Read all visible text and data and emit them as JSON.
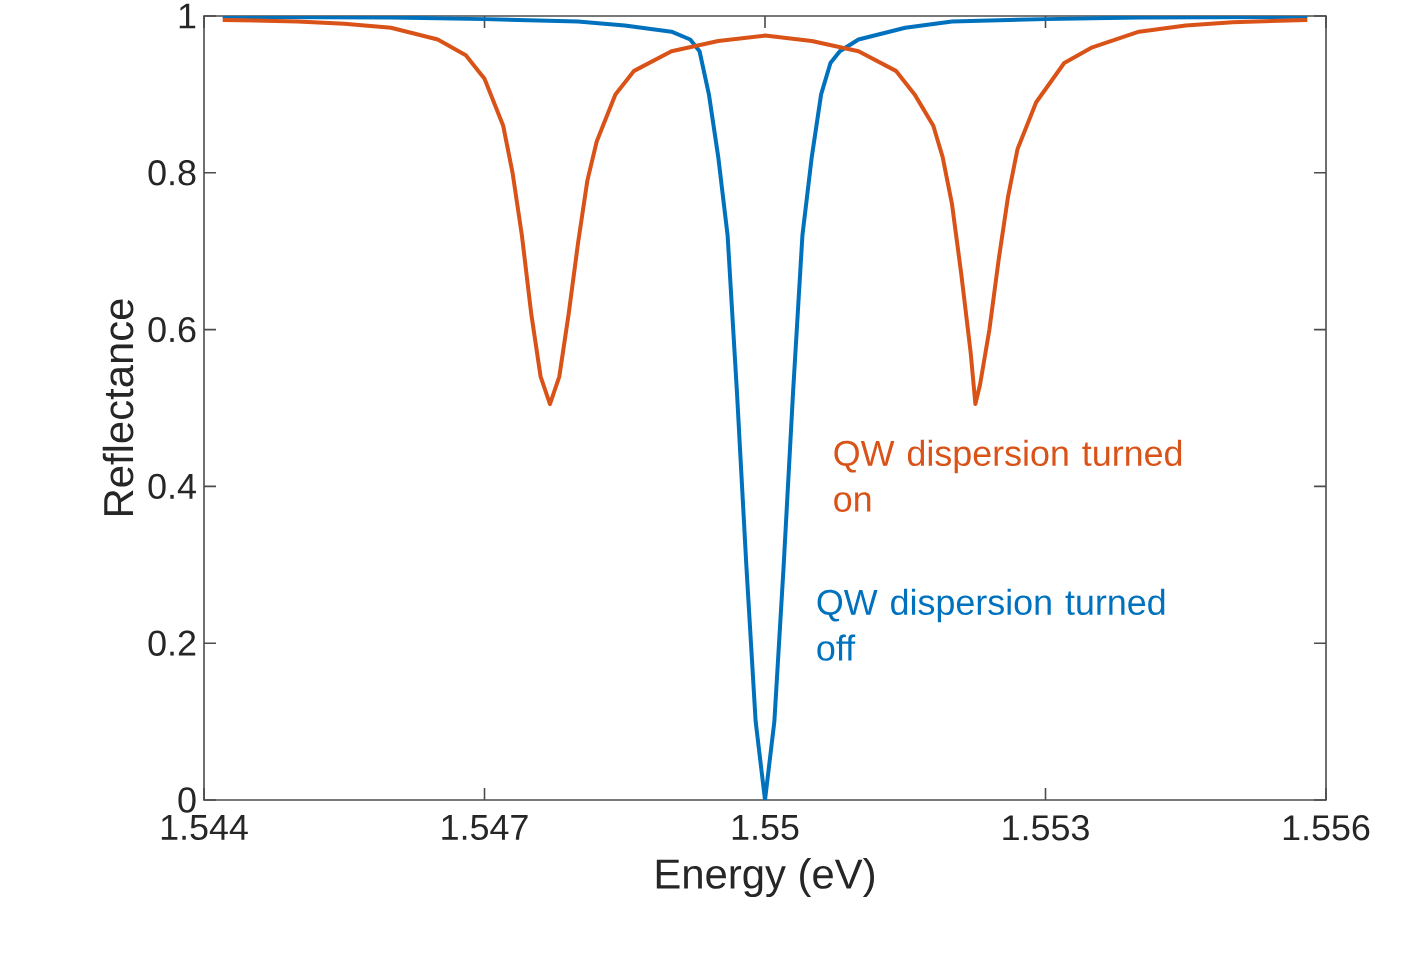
{
  "chart_data": {
    "type": "line",
    "xlabel": "Energy (eV)",
    "ylabel": "Reflectance",
    "xlim": [
      1.544,
      1.556
    ],
    "ylim": [
      0,
      1
    ],
    "xticks": [
      1.544,
      1.547,
      1.55,
      1.553,
      1.556
    ],
    "yticks": [
      0,
      0.2,
      0.4,
      0.6,
      0.8,
      1
    ],
    "grid": false,
    "legend": false,
    "marker": "none",
    "line_style": "solid",
    "series": [
      {
        "name": "QW dispersion turned off",
        "color": "#0072bd",
        "x": [
          1.5442,
          1.546,
          1.547,
          1.548,
          1.5485,
          1.549,
          1.5492,
          1.5493,
          1.5494,
          1.5495,
          1.5496,
          1.5497,
          1.5498,
          1.5499,
          1.55,
          1.5501,
          1.5502,
          1.5503,
          1.5504,
          1.5505,
          1.5506,
          1.5507,
          1.5508,
          1.551,
          1.5515,
          1.552,
          1.553,
          1.554,
          1.5558
        ],
        "values": [
          0.999,
          0.998,
          0.996,
          0.993,
          0.988,
          0.98,
          0.97,
          0.955,
          0.9,
          0.82,
          0.72,
          0.52,
          0.3,
          0.1,
          0,
          0.1,
          0.3,
          0.52,
          0.72,
          0.82,
          0.9,
          0.94,
          0.955,
          0.97,
          0.985,
          0.993,
          0.996,
          0.998,
          0.999
        ]
      },
      {
        "name": "QW dispersion turned on",
        "color": "#d95319",
        "x": [
          1.5442,
          1.545,
          1.5455,
          1.546,
          1.5465,
          1.5468,
          1.547,
          1.5472,
          1.5473,
          1.5474,
          1.5475,
          1.5476,
          1.5477,
          1.5478,
          1.5479,
          1.548,
          1.5481,
          1.5482,
          1.5484,
          1.5486,
          1.549,
          1.5495,
          1.55,
          1.5505,
          1.551,
          1.5514,
          1.5516,
          1.5518,
          1.5519,
          1.552,
          1.5521,
          1.5522,
          1.55225,
          1.5523,
          1.5524,
          1.5525,
          1.5526,
          1.5527,
          1.5529,
          1.5532,
          1.5535,
          1.554,
          1.5545,
          1.555,
          1.5558
        ],
        "values": [
          0.995,
          0.993,
          0.99,
          0.985,
          0.97,
          0.95,
          0.92,
          0.86,
          0.8,
          0.72,
          0.62,
          0.54,
          0.505,
          0.54,
          0.62,
          0.71,
          0.79,
          0.84,
          0.9,
          0.93,
          0.955,
          0.968,
          0.975,
          0.968,
          0.955,
          0.93,
          0.9,
          0.86,
          0.82,
          0.76,
          0.67,
          0.57,
          0.505,
          0.53,
          0.6,
          0.69,
          0.77,
          0.83,
          0.89,
          0.94,
          0.96,
          0.98,
          0.988,
          0.992,
          0.995
        ]
      }
    ]
  }
}
